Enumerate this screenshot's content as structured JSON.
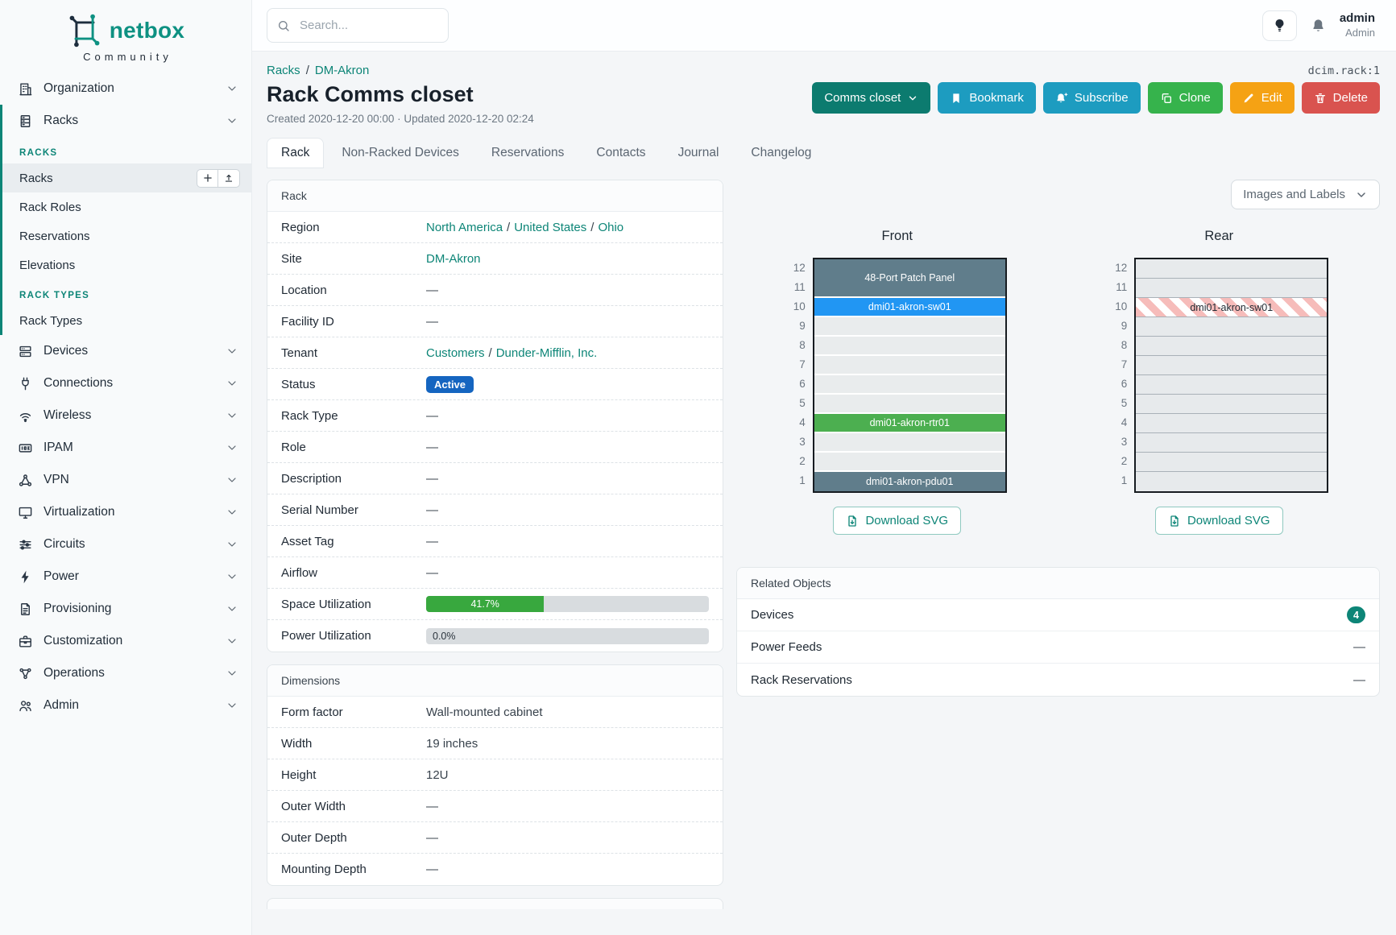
{
  "colors": {
    "accent_teal": "#0d8577",
    "brand_teal": "#0e9182",
    "context_button": "#0c7b6f",
    "info_button": "#1d9cc0",
    "success_button": "#36b34c",
    "warning_button": "#f5a214",
    "danger_button": "#d9534f",
    "status_active_badge": "#1565c0",
    "progress_green": "#38a83e"
  },
  "brand": {
    "name": "netbox",
    "tagline": "Community"
  },
  "search": {
    "placeholder": "Search..."
  },
  "user": {
    "username": "admin",
    "role": "Admin"
  },
  "object_ref": "dcim.rack:1",
  "breadcrumb": {
    "items": [
      "Racks",
      "DM-Akron"
    ]
  },
  "page": {
    "title": "Rack Comms closet",
    "meta": "Created 2020-12-20 00:00 · Updated 2020-12-20 02:24"
  },
  "actions": {
    "context": "Comms closet",
    "bookmark": "Bookmark",
    "subscribe": "Subscribe",
    "clone": "Clone",
    "edit": "Edit",
    "delete": "Delete"
  },
  "tabs": [
    {
      "label": "Rack",
      "active": true
    },
    {
      "label": "Non-Racked Devices",
      "active": false
    },
    {
      "label": "Reservations",
      "active": false
    },
    {
      "label": "Contacts",
      "active": false
    },
    {
      "label": "Journal",
      "active": false
    },
    {
      "label": "Changelog",
      "active": false
    }
  ],
  "sidebar": {
    "items": [
      {
        "label": "Organization",
        "icon": "building-icon",
        "chevron": true
      },
      {
        "label": "Racks",
        "icon": "rack-icon",
        "chevron": true,
        "expanded": true,
        "groups": [
          {
            "title": "RACKS",
            "links": [
              {
                "label": "Racks",
                "active": true,
                "buttons": [
                  "plus",
                  "upload"
                ]
              },
              {
                "label": "Rack Roles"
              },
              {
                "label": "Reservations"
              },
              {
                "label": "Elevations"
              }
            ]
          },
          {
            "title": "RACK TYPES",
            "links": [
              {
                "label": "Rack Types"
              }
            ]
          }
        ]
      },
      {
        "label": "Devices",
        "icon": "server-icon",
        "chevron": true
      },
      {
        "label": "Connections",
        "icon": "plug-icon",
        "chevron": true
      },
      {
        "label": "Wireless",
        "icon": "wifi-icon",
        "chevron": true
      },
      {
        "label": "IPAM",
        "icon": "ipam-icon",
        "chevron": true
      },
      {
        "label": "VPN",
        "icon": "vpn-icon",
        "chevron": true
      },
      {
        "label": "Virtualization",
        "icon": "monitor-icon",
        "chevron": true
      },
      {
        "label": "Circuits",
        "icon": "circuits-icon",
        "chevron": true
      },
      {
        "label": "Power",
        "icon": "bolt-icon",
        "chevron": true
      },
      {
        "label": "Provisioning",
        "icon": "clipboard-icon",
        "chevron": true
      },
      {
        "label": "Customization",
        "icon": "briefcase-icon",
        "chevron": true
      },
      {
        "label": "Operations",
        "icon": "operations-icon",
        "chevron": true
      },
      {
        "label": "Admin",
        "icon": "users-icon",
        "chevron": true
      }
    ]
  },
  "rack_panel": {
    "title": "Rack",
    "rows": [
      {
        "label": "Region",
        "type": "links",
        "parts": [
          "North America",
          "United States",
          "Ohio"
        ]
      },
      {
        "label": "Site",
        "type": "links",
        "parts": [
          "DM-Akron"
        ]
      },
      {
        "label": "Location",
        "type": "text",
        "value": "—"
      },
      {
        "label": "Facility ID",
        "type": "text",
        "value": "—"
      },
      {
        "label": "Tenant",
        "type": "links",
        "parts": [
          "Customers",
          "Dunder-Mifflin, Inc."
        ]
      },
      {
        "label": "Status",
        "type": "badge",
        "value": "Active"
      },
      {
        "label": "Rack Type",
        "type": "text",
        "value": "—"
      },
      {
        "label": "Role",
        "type": "text",
        "value": "—"
      },
      {
        "label": "Description",
        "type": "text",
        "value": "—"
      },
      {
        "label": "Serial Number",
        "type": "text",
        "value": "—"
      },
      {
        "label": "Asset Tag",
        "type": "text",
        "value": "—"
      },
      {
        "label": "Airflow",
        "type": "text",
        "value": "—"
      },
      {
        "label": "Space Utilization",
        "type": "progress",
        "percent": 41.7,
        "percent_label": "41.7%"
      },
      {
        "label": "Power Utilization",
        "type": "progress",
        "percent": 0,
        "percent_label": "0.0%"
      }
    ]
  },
  "dimensions_panel": {
    "title": "Dimensions",
    "rows": [
      {
        "label": "Form factor",
        "type": "text",
        "value": "Wall-mounted cabinet"
      },
      {
        "label": "Width",
        "type": "text",
        "value": "19 inches"
      },
      {
        "label": "Height",
        "type": "text",
        "value": "12U"
      },
      {
        "label": "Outer Width",
        "type": "text",
        "value": "—"
      },
      {
        "label": "Outer Depth",
        "type": "text",
        "value": "—"
      },
      {
        "label": "Mounting Depth",
        "type": "text",
        "value": "—"
      }
    ]
  },
  "elevation": {
    "view_select": "Images and Labels",
    "unit_numbers": [
      "12",
      "11",
      "10",
      "9",
      "8",
      "7",
      "6",
      "5",
      "4",
      "3",
      "2",
      "1"
    ],
    "front": {
      "title": "Front",
      "download_label": "Download SVG",
      "units": [
        {
          "type": "device",
          "top_unit": 12,
          "span": 2,
          "label": "48-Port Patch Panel",
          "color": "#607d8b"
        },
        {
          "type": "device",
          "top_unit": 10,
          "span": 1,
          "label": "dmi01-akron-sw01",
          "color": "#2196f3"
        },
        {
          "type": "empty",
          "top_unit": 9,
          "span": 1
        },
        {
          "type": "empty",
          "top_unit": 8,
          "span": 1
        },
        {
          "type": "empty",
          "top_unit": 7,
          "span": 1
        },
        {
          "type": "empty",
          "top_unit": 6,
          "span": 1
        },
        {
          "type": "empty",
          "top_unit": 5,
          "span": 1
        },
        {
          "type": "device",
          "top_unit": 4,
          "span": 1,
          "label": "dmi01-akron-rtr01",
          "color": "#4caf50"
        },
        {
          "type": "empty",
          "top_unit": 3,
          "span": 1
        },
        {
          "type": "empty",
          "top_unit": 2,
          "span": 1
        },
        {
          "type": "device",
          "top_unit": 1,
          "span": 1,
          "label": "dmi01-akron-pdu01",
          "color": "#607d8b"
        }
      ]
    },
    "rear": {
      "title": "Rear",
      "download_label": "Download SVG",
      "units": [
        {
          "type": "empty",
          "top_unit": 12,
          "span": 1
        },
        {
          "type": "empty",
          "top_unit": 11,
          "span": 1
        },
        {
          "type": "striped",
          "top_unit": 10,
          "span": 1,
          "label": "dmi01-akron-sw01",
          "stripe_color": "#f6bcba",
          "stripe_alt": "#ffffff"
        },
        {
          "type": "empty",
          "top_unit": 9,
          "span": 1
        },
        {
          "type": "empty",
          "top_unit": 8,
          "span": 1
        },
        {
          "type": "empty",
          "top_unit": 7,
          "span": 1
        },
        {
          "type": "empty",
          "top_unit": 6,
          "span": 1
        },
        {
          "type": "empty",
          "top_unit": 5,
          "span": 1
        },
        {
          "type": "empty",
          "top_unit": 4,
          "span": 1
        },
        {
          "type": "empty",
          "top_unit": 3,
          "span": 1
        },
        {
          "type": "empty",
          "top_unit": 2,
          "span": 1
        },
        {
          "type": "empty",
          "top_unit": 1,
          "span": 1
        }
      ]
    }
  },
  "related_objects": {
    "title": "Related Objects",
    "rows": [
      {
        "label": "Devices",
        "count": "4"
      },
      {
        "label": "Power Feeds",
        "value": "—"
      },
      {
        "label": "Rack Reservations",
        "value": "—"
      }
    ]
  }
}
